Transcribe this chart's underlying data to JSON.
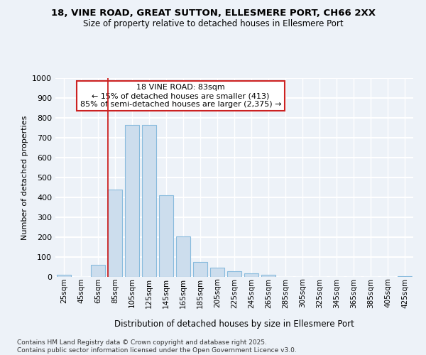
{
  "title1": "18, VINE ROAD, GREAT SUTTON, ELLESMERE PORT, CH66 2XX",
  "title2": "Size of property relative to detached houses in Ellesmere Port",
  "xlabel": "Distribution of detached houses by size in Ellesmere Port",
  "ylabel": "Number of detached properties",
  "bins": [
    "25sqm",
    "45sqm",
    "65sqm",
    "85sqm",
    "105sqm",
    "125sqm",
    "145sqm",
    "165sqm",
    "185sqm",
    "205sqm",
    "225sqm",
    "245sqm",
    "265sqm",
    "285sqm",
    "305sqm",
    "325sqm",
    "345sqm",
    "365sqm",
    "385sqm",
    "405sqm",
    "425sqm"
  ],
  "values": [
    10,
    0,
    60,
    440,
    765,
    765,
    410,
    205,
    75,
    45,
    28,
    18,
    10,
    0,
    0,
    0,
    0,
    0,
    0,
    0,
    5
  ],
  "bar_color": "#ccdded",
  "bar_edge_color": "#88bbdd",
  "vline_bin_index": 3,
  "vline_color": "#cc2222",
  "annotation_text": "18 VINE ROAD: 83sqm\n← 15% of detached houses are smaller (413)\n85% of semi-detached houses are larger (2,375) →",
  "annotation_box_color": "#ffffff",
  "annotation_box_edge": "#cc2222",
  "bg_color": "#edf2f8",
  "plot_bg_color": "#edf2f8",
  "grid_color": "#ffffff",
  "footer": "Contains HM Land Registry data © Crown copyright and database right 2025.\nContains public sector information licensed under the Open Government Licence v3.0.",
  "ylim": [
    0,
    1000
  ],
  "yticks": [
    0,
    100,
    200,
    300,
    400,
    500,
    600,
    700,
    800,
    900,
    1000
  ]
}
